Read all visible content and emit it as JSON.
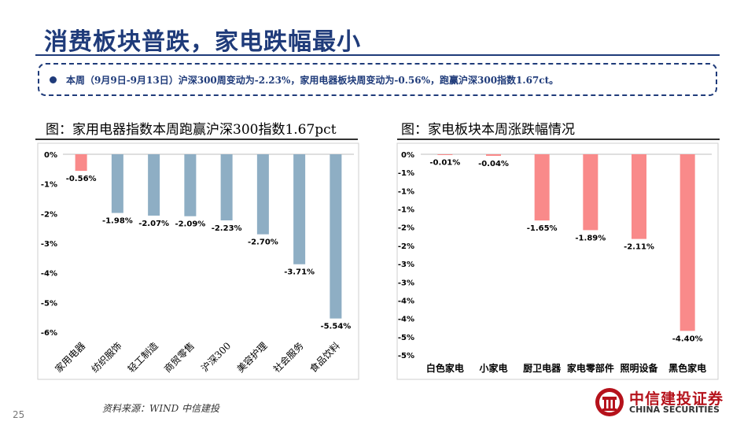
{
  "header": {
    "title": "消费板块普跌，家电跌幅最小",
    "summary": "本周（9月9日-9月13日）沪深300周变动为-2.23%，家用电器板块周变动为-0.56%，跑赢沪深300指数1.67ct。"
  },
  "footer": {
    "source": "资料来源：WIND  中信建投",
    "page_number": "25",
    "logo_cn": "中信建投证券",
    "logo_en": "CHINA SECURITIES"
  },
  "colors": {
    "left_bars": "#8eaec4",
    "right_bars": "#f98a8a",
    "title": "#1f3b7a",
    "logo": "#b5121b"
  },
  "chart_data": [
    {
      "type": "bar",
      "title": "图：家用电器指数本周跑赢沪深300指数1.67pct",
      "categories": [
        "家用电器",
        "纺织服饰",
        "轻工制造",
        "商贸零售",
        "沪深300",
        "美容护理",
        "社会服务",
        "食品饮料"
      ],
      "values": [
        -0.56,
        -1.98,
        -2.07,
        -2.09,
        -2.23,
        -2.7,
        -3.71,
        -5.54
      ],
      "data_labels": [
        "-0.56%",
        "-1.98%",
        "-2.07%",
        "-2.09%",
        "-2.23%",
        "-2.70%",
        "-3.71%",
        "-5.54%"
      ],
      "y_ticks": [
        "0%",
        "-1%",
        "-2%",
        "-3%",
        "-4%",
        "-5%",
        "-6%"
      ],
      "ylim": [
        -6,
        0
      ],
      "xlabel": "",
      "ylabel": "",
      "x_label_rotation": "rotated",
      "highlight_first": true
    },
    {
      "type": "bar",
      "title": "图：家电板块本周涨跌幅情况",
      "categories": [
        "白色家电",
        "小家电",
        "厨卫电器",
        "家电零部件",
        "照明设备",
        "黑色家电"
      ],
      "values": [
        -0.01,
        -0.04,
        -1.65,
        -1.89,
        -2.11,
        -4.4
      ],
      "data_labels": [
        "-0.01%",
        "-0.04%",
        "-1.65%",
        "-1.89%",
        "-2.11%",
        "-4.40%"
      ],
      "y_ticks": [
        "0%",
        "-1%",
        "-1%",
        "-1%",
        "-2%",
        "-2%",
        "-3%",
        "-3%",
        "-4%",
        "-4%",
        "-5%",
        "-5%"
      ],
      "ylim": [
        -5,
        0
      ],
      "xlabel": "",
      "ylabel": "",
      "x_label_rotation": "horizontal"
    }
  ]
}
